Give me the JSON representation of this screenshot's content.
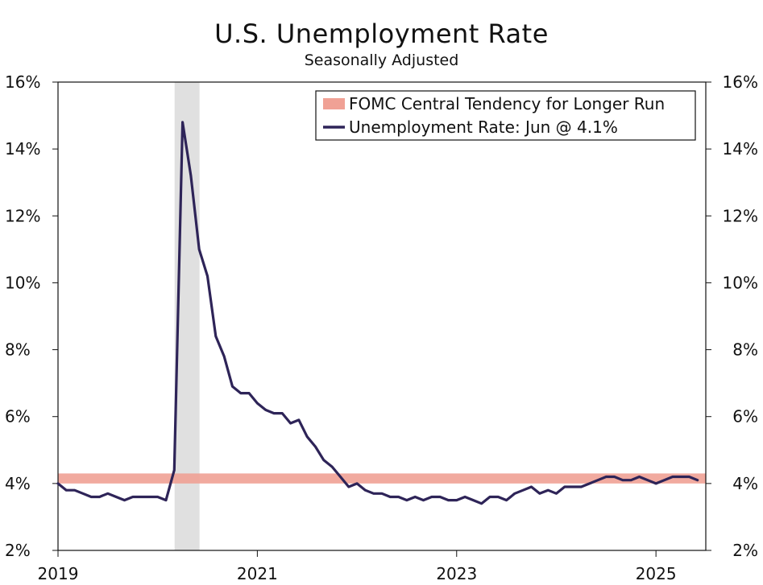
{
  "chart_data": {
    "type": "line",
    "title": "U.S. Unemployment Rate",
    "subtitle": "Seasonally Adjusted",
    "x_start": "2019-01",
    "xlim": [
      2019.0,
      2025.5
    ],
    "ylim": [
      2,
      16
    ],
    "y_ticks": [
      2,
      4,
      6,
      8,
      10,
      12,
      14,
      16
    ],
    "y_tick_labels": [
      "2%",
      "4%",
      "6%",
      "8%",
      "10%",
      "12%",
      "14%",
      "16%"
    ],
    "x_ticks": [
      2019,
      2021,
      2023,
      2025
    ],
    "x_tick_labels": [
      "2019",
      "2021",
      "2023",
      "2025"
    ],
    "recession": {
      "start": 2020.17,
      "end": 2020.42,
      "color": "#e0e0e0"
    },
    "band": {
      "name": "FOMC Central Tendency for Longer Run",
      "low": 4.0,
      "high": 4.3,
      "color": "#f0a195"
    },
    "series": [
      {
        "name": "Unemployment Rate: Jun @ 4.1%",
        "color": "#2e2458",
        "values": [
          4.0,
          3.8,
          3.8,
          3.7,
          3.6,
          3.6,
          3.7,
          3.6,
          3.5,
          3.6,
          3.6,
          3.6,
          3.6,
          3.5,
          4.4,
          14.8,
          13.2,
          11.0,
          10.2,
          8.4,
          7.8,
          6.9,
          6.7,
          6.7,
          6.4,
          6.2,
          6.1,
          6.1,
          5.8,
          5.9,
          5.4,
          5.1,
          4.7,
          4.5,
          4.2,
          3.9,
          4.0,
          3.8,
          3.7,
          3.7,
          3.6,
          3.6,
          3.5,
          3.6,
          3.5,
          3.6,
          3.6,
          3.5,
          3.5,
          3.6,
          3.5,
          3.4,
          3.6,
          3.6,
          3.5,
          3.7,
          3.8,
          3.9,
          3.7,
          3.8,
          3.7,
          3.9,
          3.9,
          3.9,
          4.0,
          4.1,
          4.2,
          4.2,
          4.1,
          4.1,
          4.2,
          4.1,
          4.0,
          4.1,
          4.2,
          4.2,
          4.2,
          4.1
        ]
      }
    ],
    "legend": {
      "position": "top-right",
      "items": [
        "FOMC Central Tendency for Longer Run",
        "Unemployment Rate: Jun @ 4.1%"
      ]
    }
  }
}
